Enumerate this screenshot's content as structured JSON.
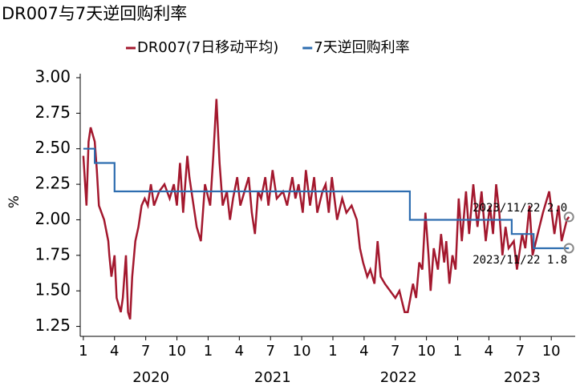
{
  "chart_data": {
    "type": "line",
    "title": "DR007与7天逆回购利率",
    "ylabel": "%",
    "xlim": [
      -0.3,
      47.3
    ],
    "ylim": [
      1.18,
      3.0
    ],
    "yticks": [
      {
        "value": 1.25,
        "label": "1.25"
      },
      {
        "value": 1.5,
        "label": "1.50"
      },
      {
        "value": 1.75,
        "label": "1.75"
      },
      {
        "value": 2.0,
        "label": "2.00"
      },
      {
        "value": 2.25,
        "label": "2.25"
      },
      {
        "value": 2.5,
        "label": "2.50"
      },
      {
        "value": 2.75,
        "label": "2.75"
      },
      {
        "value": 3.0,
        "label": "3.00"
      }
    ],
    "xticks": [
      {
        "value": 0,
        "label": "1"
      },
      {
        "value": 3,
        "label": "4"
      },
      {
        "value": 6,
        "label": "7"
      },
      {
        "value": 9,
        "label": "10"
      },
      {
        "value": 12,
        "label": "1"
      },
      {
        "value": 15,
        "label": "4"
      },
      {
        "value": 18,
        "label": "7"
      },
      {
        "value": 21,
        "label": "10"
      },
      {
        "value": 24,
        "label": "1"
      },
      {
        "value": 27,
        "label": "4"
      },
      {
        "value": 30,
        "label": "7"
      },
      {
        "value": 33,
        "label": "10"
      },
      {
        "value": 36,
        "label": "1"
      },
      {
        "value": 39,
        "label": "4"
      },
      {
        "value": 42,
        "label": "7"
      },
      {
        "value": 45,
        "label": "10"
      }
    ],
    "year_labels": [
      {
        "value": 6.5,
        "label": "2020"
      },
      {
        "value": 18.2,
        "label": "2021"
      },
      {
        "value": 30.3,
        "label": "2022"
      },
      {
        "value": 42.2,
        "label": "2023"
      }
    ],
    "grid": false,
    "legend": "top",
    "series": [
      {
        "name": "DR007(7日移动平均)",
        "color": "#a3182e",
        "x": [
          0,
          0.3,
          0.5,
          0.7,
          1.1,
          1.3,
          1.5,
          2.0,
          2.4,
          2.5,
          2.7,
          3.0,
          3.2,
          3.6,
          3.8,
          4.1,
          4.3,
          4.5,
          4.7,
          5.0,
          5.3,
          5.6,
          5.9,
          6.2,
          6.5,
          6.8,
          7.3,
          7.8,
          8.3,
          8.7,
          9.0,
          9.3,
          9.6,
          10.0,
          10.2,
          10.5,
          10.9,
          11.3,
          11.7,
          12.2,
          12.5,
          12.8,
          13.1,
          13.4,
          13.8,
          14.1,
          14.4,
          14.8,
          15.1,
          15.5,
          15.9,
          16.2,
          16.5,
          16.8,
          17.1,
          17.5,
          17.8,
          18.2,
          18.6,
          19.2,
          19.6,
          20.1,
          20.4,
          20.7,
          21.1,
          21.4,
          21.8,
          22.2,
          22.5,
          23.0,
          23.3,
          23.6,
          23.9,
          24.4,
          24.9,
          25.3,
          25.8,
          26.3,
          26.6,
          26.9,
          27.3,
          27.6,
          28.0,
          28.3,
          28.6,
          29.0,
          29.5,
          30.0,
          30.4,
          30.9,
          31.2,
          31.7,
          32.0,
          32.3,
          32.6,
          32.9,
          33.2,
          33.4,
          33.7,
          34.1,
          34.4,
          34.7,
          34.9,
          35.2,
          35.5,
          35.8,
          36.1,
          36.4,
          36.8,
          37.1,
          37.5,
          37.9,
          38.3,
          38.7,
          39.1,
          39.4,
          39.7,
          40.0,
          40.3,
          40.6,
          40.9,
          41.4,
          41.7,
          42.2,
          42.5,
          42.9,
          43.2,
          43.7,
          44.2,
          44.8,
          45.3,
          45.7,
          46.0,
          46.5,
          46.7
        ],
        "values": [
          2.45,
          2.1,
          2.55,
          2.65,
          2.55,
          2.35,
          2.1,
          2.0,
          1.85,
          1.75,
          1.6,
          1.75,
          1.45,
          1.35,
          1.45,
          1.75,
          1.35,
          1.3,
          1.6,
          1.85,
          1.95,
          2.1,
          2.15,
          2.1,
          2.25,
          2.1,
          2.2,
          2.25,
          2.15,
          2.25,
          2.1,
          2.4,
          2.05,
          2.45,
          2.3,
          2.15,
          1.95,
          1.85,
          2.25,
          2.1,
          2.45,
          2.85,
          2.4,
          2.1,
          2.2,
          2.0,
          2.15,
          2.3,
          2.1,
          2.2,
          2.3,
          2.05,
          1.9,
          2.2,
          2.15,
          2.3,
          2.1,
          2.35,
          2.15,
          2.2,
          2.1,
          2.3,
          2.15,
          2.25,
          2.05,
          2.35,
          2.1,
          2.3,
          2.05,
          2.2,
          2.25,
          2.05,
          2.3,
          2.0,
          2.15,
          2.05,
          2.1,
          2.0,
          1.8,
          1.7,
          1.6,
          1.65,
          1.55,
          1.85,
          1.6,
          1.55,
          1.5,
          1.45,
          1.5,
          1.35,
          1.35,
          1.55,
          1.45,
          1.7,
          1.65,
          2.05,
          1.75,
          1.5,
          1.8,
          1.65,
          1.9,
          1.7,
          1.85,
          1.55,
          1.75,
          1.65,
          2.15,
          1.85,
          2.2,
          1.9,
          2.25,
          1.95,
          2.2,
          1.85,
          2.1,
          1.9,
          2.25,
          2.05,
          1.75,
          1.95,
          1.8,
          1.85,
          1.65,
          1.9,
          1.8,
          2.1,
          1.75,
          1.9,
          2.05,
          2.2,
          1.9,
          2.1,
          1.85,
          2.0,
          2.02
        ]
      },
      {
        "name": "7天逆回购利率",
        "color": "#2e6db0",
        "x": [
          0,
          1.1,
          1.1,
          3.0,
          3.0,
          31.4,
          31.4,
          41.2,
          41.2,
          43.3,
          43.3,
          46.7
        ],
        "values": [
          2.5,
          2.5,
          2.4,
          2.4,
          2.2,
          2.2,
          2.0,
          2.0,
          1.9,
          1.9,
          1.8,
          1.8
        ]
      }
    ],
    "annotations": [
      {
        "text": "2023/11/22 2.0",
        "x": 46.7,
        "y": 2.02
      },
      {
        "text": "2023/11/22 1.8",
        "x": 46.7,
        "y": 1.8
      }
    ]
  }
}
